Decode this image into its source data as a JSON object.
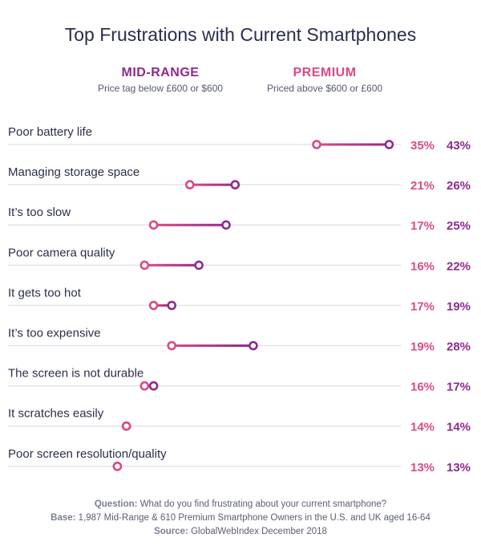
{
  "chart_data": {
    "type": "dumbbell",
    "title": "Top Frustrations with Current Smartphones",
    "legend": [
      {
        "name": "MID-RANGE",
        "description": "Price tag below £600 or $600",
        "color": "#8e2a8e"
      },
      {
        "name": "PREMIUM",
        "description": "Priced above $600 or £600",
        "color": "#d94a86"
      }
    ],
    "categories": [
      "Poor battery life",
      "Managing storage space",
      "It’s too slow",
      "Poor camera quality",
      "It gets too hot",
      "It’s too expensive",
      "The screen is not durable",
      "It scratches easily",
      "Poor screen resolution/quality"
    ],
    "series": [
      {
        "name": "PREMIUM",
        "color": "#d94a86",
        "values": [
          35,
          21,
          17,
          16,
          17,
          19,
          16,
          14,
          13
        ]
      },
      {
        "name": "MID-RANGE",
        "color": "#8e2a8e",
        "values": [
          43,
          26,
          25,
          22,
          19,
          28,
          17,
          14,
          13
        ]
      }
    ],
    "value_labels": {
      "premium": [
        "35%",
        "21%",
        "17%",
        "16%",
        "17%",
        "19%",
        "16%",
        "14%",
        "13%"
      ],
      "midrange": [
        "43%",
        "26%",
        "25%",
        "22%",
        "19%",
        "28%",
        "17%",
        "14%",
        "13%"
      ]
    },
    "footer": {
      "question_label": "Question:",
      "question_text": " What do you find frustrating about your current smartphone?",
      "base_label": "Base:",
      "base_text": " 1,987 Mid-Range & 610 Premium Smartphone Owners in the U.S. and UK aged 16-64",
      "source_label": "Source:",
      "source_text": " GlobalWebIndex December 2018"
    }
  }
}
